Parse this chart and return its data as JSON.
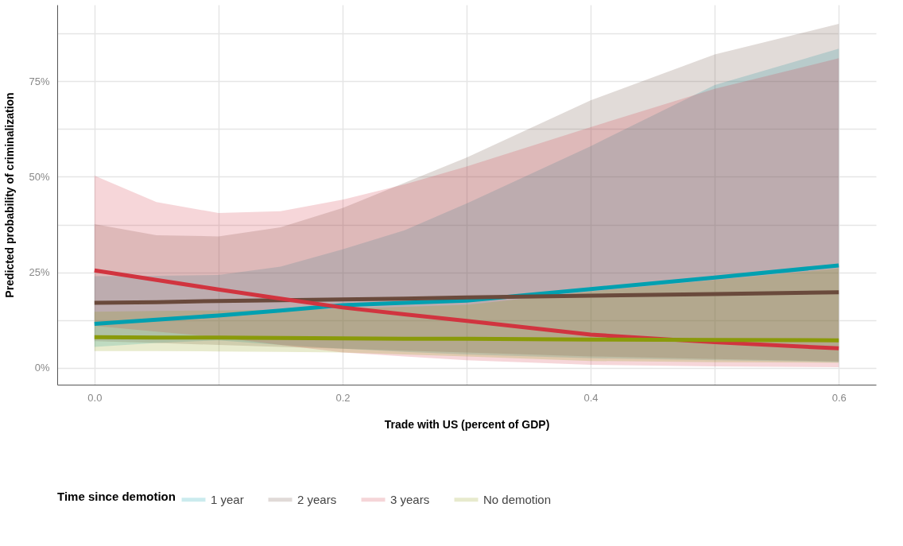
{
  "chart_data": {
    "type": "line",
    "xlabel": "Trade with US (percent of GDP)",
    "ylabel": "Predicted probability of criminalization",
    "legend_title": "Time since demotion",
    "legend": "bottom",
    "grid": true,
    "x": [
      0,
      0.05,
      0.1,
      0.15,
      0.2,
      0.25,
      0.3,
      0.4,
      0.5,
      0.6
    ],
    "xlim": [
      -0.03,
      0.63
    ],
    "xticks": [
      {
        "value": 0,
        "label": "0.0"
      },
      {
        "value": 0.1,
        "label": null
      },
      0.2,
      {
        "value": 0.3,
        "label": null
      },
      0.4,
      {
        "value": 0.5,
        "label": null
      },
      0.6
    ],
    "ylim": [
      -4.4,
      95
    ],
    "yticks": [
      {
        "value": 0,
        "label": "0%"
      },
      {
        "value": 12.5,
        "label": null
      },
      {
        "value": 25,
        "label": "25%"
      },
      {
        "value": 37.5,
        "label": null
      },
      {
        "value": 50,
        "label": "50%"
      },
      {
        "value": 62.5,
        "label": null
      },
      {
        "value": 75,
        "label": "75%"
      },
      {
        "value": 87.5,
        "label": null
      }
    ],
    "series": [
      {
        "name": "1 year",
        "color": "#00a0b0",
        "values": [
          11.5,
          12.6,
          13.7,
          15,
          16.4,
          17,
          17.6,
          20.6,
          23.6,
          26.8
        ],
        "lower": [
          5.5,
          6.5,
          7.2,
          6,
          5,
          4.2,
          3.5,
          2.5,
          2,
          1.5
        ],
        "upper": [
          24,
          24.1,
          24.3,
          26.5,
          31,
          36,
          43,
          58,
          74,
          83.5
        ]
      },
      {
        "name": "2 years",
        "color": "#6a4a3c",
        "values": [
          17,
          17.2,
          17.5,
          17.7,
          17.9,
          18.1,
          18.4,
          18.9,
          19.3,
          19.8
        ],
        "lower": [
          7,
          6.5,
          6,
          5.5,
          5,
          4.5,
          4,
          3,
          2.3,
          1.7
        ],
        "upper": [
          37.6,
          34.7,
          34.4,
          36.8,
          41.8,
          48.4,
          55,
          70,
          82,
          90
        ]
      },
      {
        "name": "3 years",
        "color": "#d1343f",
        "values": [
          25.5,
          23,
          20.5,
          18.1,
          15.8,
          14,
          12.3,
          8.7,
          6.7,
          5.1
        ],
        "lower": [
          11,
          9.5,
          8,
          6,
          4,
          3,
          2,
          0.8,
          0.4,
          0.2
        ],
        "upper": [
          50.3,
          43.4,
          40.5,
          41,
          44,
          48,
          52.7,
          63,
          73,
          81
        ]
      },
      {
        "name": "No demotion",
        "color": "#8a9a0a",
        "values": [
          8,
          7.9,
          7.9,
          7.8,
          7.7,
          7.6,
          7.6,
          7.4,
          7.3,
          7.2
        ],
        "lower": [
          4.4,
          4.4,
          4.3,
          4.2,
          4,
          3.5,
          3,
          1.8,
          1.5,
          1.3
        ],
        "upper": [
          14.7,
          14.9,
          15,
          15.2,
          15.5,
          16,
          16.5,
          20,
          23,
          26
        ]
      }
    ]
  }
}
